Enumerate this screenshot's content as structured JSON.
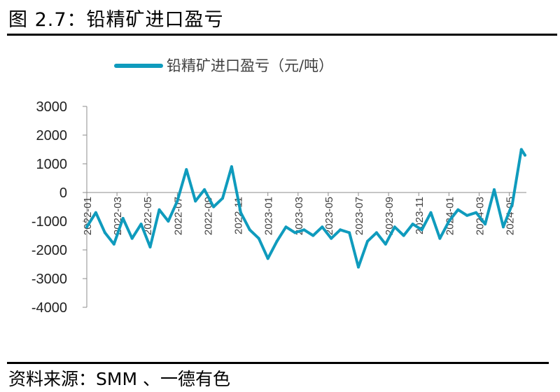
{
  "figure": {
    "title": "图 2.7：铅精矿进口盈亏",
    "source": "资料来源：SMM 、一德有色"
  },
  "chart_data": {
    "type": "line",
    "title": "",
    "xlabel": "",
    "ylabel": "",
    "ylim": [
      -4000,
      3000
    ],
    "yticks": [
      "3000",
      "2000",
      "1000",
      "0",
      "-1000",
      "-2000",
      "-3000",
      "-4000"
    ],
    "xticks": [
      "2022-01",
      "2022-03",
      "2022-05",
      "2022-07",
      "2022-09",
      "2022-11",
      "2023-01",
      "2023-03",
      "2023-05",
      "2023-07",
      "2023-09",
      "2023-11",
      "2024-01",
      "2024-03",
      "2024-05"
    ],
    "legend_position": "top",
    "grid": false,
    "color": "#0f9bbd",
    "series": [
      {
        "name": "铅精矿进口盈亏（元/吨）",
        "x": [
          2022.0,
          2022.05,
          2022.1,
          2022.15,
          2022.2,
          2022.25,
          2022.3,
          2022.35,
          2022.4,
          2022.45,
          2022.5,
          2022.55,
          2022.6,
          2022.65,
          2022.7,
          2022.75,
          2022.8,
          2022.85,
          2022.9,
          2022.95,
          2023.0,
          2023.05,
          2023.1,
          2023.15,
          2023.2,
          2023.25,
          2023.3,
          2023.35,
          2023.4,
          2023.45,
          2023.5,
          2023.55,
          2023.6,
          2023.65,
          2023.7,
          2023.75,
          2023.8,
          2023.85,
          2023.9,
          2023.95,
          2024.0,
          2024.05,
          2024.1,
          2024.15,
          2024.2,
          2024.25,
          2024.3,
          2024.35,
          2024.4,
          2024.42
        ],
        "values": [
          -1200,
          -700,
          -1400,
          -1800,
          -900,
          -1600,
          -1100,
          -1900,
          -600,
          -1000,
          -300,
          800,
          -300,
          100,
          -500,
          -200,
          900,
          -700,
          -1300,
          -1600,
          -2300,
          -1700,
          -1200,
          -1400,
          -1300,
          -1500,
          -1200,
          -1600,
          -1300,
          -1400,
          -2600,
          -1700,
          -1400,
          -1800,
          -1200,
          -1500,
          -1100,
          -1300,
          -700,
          -1600,
          -1000,
          -600,
          -800,
          -700,
          -1100,
          100,
          -1200,
          -400,
          1500,
          1300
        ]
      }
    ]
  }
}
